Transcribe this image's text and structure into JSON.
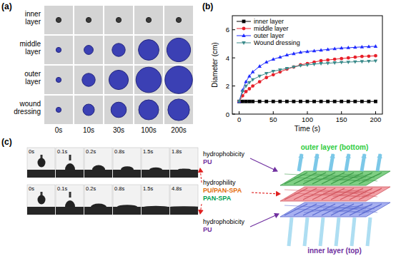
{
  "panel_a": {
    "label": "(a)",
    "rows": [
      "inner layer",
      "middle layer",
      "outer layer",
      "wound dressing"
    ],
    "columns": [
      {
        "value": 0,
        "label": "0s"
      },
      {
        "value": 10,
        "label": "10s"
      },
      {
        "value": 30,
        "label": "30s"
      },
      {
        "value": 100,
        "label": "100s"
      },
      {
        "value": 200,
        "label": "200s"
      }
    ]
  },
  "chart_data": {
    "type": "line",
    "label": "(b)",
    "x_label": "Time (s)",
    "y_label": "Diameter (cm)",
    "x": [
      0,
      5,
      10,
      15,
      20,
      30,
      40,
      50,
      60,
      70,
      80,
      90,
      100,
      110,
      120,
      130,
      140,
      150,
      160,
      170,
      180,
      190,
      200
    ],
    "xlim": [
      -10,
      210
    ],
    "xticks": [
      0,
      50,
      100,
      150,
      200
    ],
    "ylim": [
      0,
      7
    ],
    "yticks": [
      0,
      2,
      4,
      6
    ],
    "legend": "upper left",
    "series": [
      {
        "name": "inner layer",
        "color": "#000000",
        "marker": "square",
        "values": [
          0.9,
          0.9,
          0.9,
          0.9,
          0.9,
          0.9,
          0.9,
          0.9,
          0.9,
          0.9,
          0.9,
          0.9,
          0.9,
          0.9,
          0.9,
          0.9,
          0.9,
          0.9,
          0.9,
          0.9,
          0.9,
          0.9,
          0.9
        ]
      },
      {
        "name": "middle layer",
        "color": "#e8202a",
        "marker": "circle",
        "values": [
          0.9,
          1.3,
          1.6,
          1.8,
          2.0,
          2.3,
          2.6,
          2.8,
          3.0,
          3.2,
          3.35,
          3.5,
          3.6,
          3.7,
          3.8,
          3.85,
          3.9,
          3.95,
          4.0,
          4.05,
          4.1,
          4.12,
          4.15
        ]
      },
      {
        "name": "outer layer",
        "color": "#1f2bff",
        "marker": "triangle",
        "values": [
          0.9,
          1.7,
          2.3,
          2.7,
          3.0,
          3.4,
          3.7,
          3.9,
          4.05,
          4.2,
          4.3,
          4.4,
          4.45,
          4.5,
          4.55,
          4.6,
          4.65,
          4.7,
          4.72,
          4.75,
          4.78,
          4.8,
          4.82
        ]
      },
      {
        "name": "Wound dressing",
        "color": "#3a8a8a",
        "marker": "triangle-down",
        "values": [
          0.9,
          1.6,
          2.0,
          2.25,
          2.45,
          2.7,
          2.9,
          3.05,
          3.15,
          3.25,
          3.35,
          3.45,
          3.5,
          3.55,
          3.6,
          3.62,
          3.65,
          3.68,
          3.7,
          3.72,
          3.74,
          3.76,
          3.78
        ]
      }
    ]
  },
  "panel_c": {
    "label": "(c)",
    "strips": [
      {
        "times": [
          "0s",
          "0.1s",
          "0.2s",
          "0.8s",
          "1.5s",
          "1.8s"
        ]
      },
      {
        "times": [
          "0s",
          "0.1s",
          "0.2s",
          "0.8s",
          "1.5s",
          "4.8s"
        ]
      }
    ],
    "layers": [
      {
        "property": "hydrophobicity",
        "materials": [
          "PU"
        ]
      },
      {
        "property": "hydrophility",
        "materials": [
          "PU/PAN-SPA",
          "PAN-SPA"
        ]
      },
      {
        "property": "hydrophobicity",
        "materials": [
          "PU"
        ]
      }
    ],
    "diagram": {
      "top": "outer layer (bottom)",
      "bottom": "inner layer (top)"
    }
  }
}
